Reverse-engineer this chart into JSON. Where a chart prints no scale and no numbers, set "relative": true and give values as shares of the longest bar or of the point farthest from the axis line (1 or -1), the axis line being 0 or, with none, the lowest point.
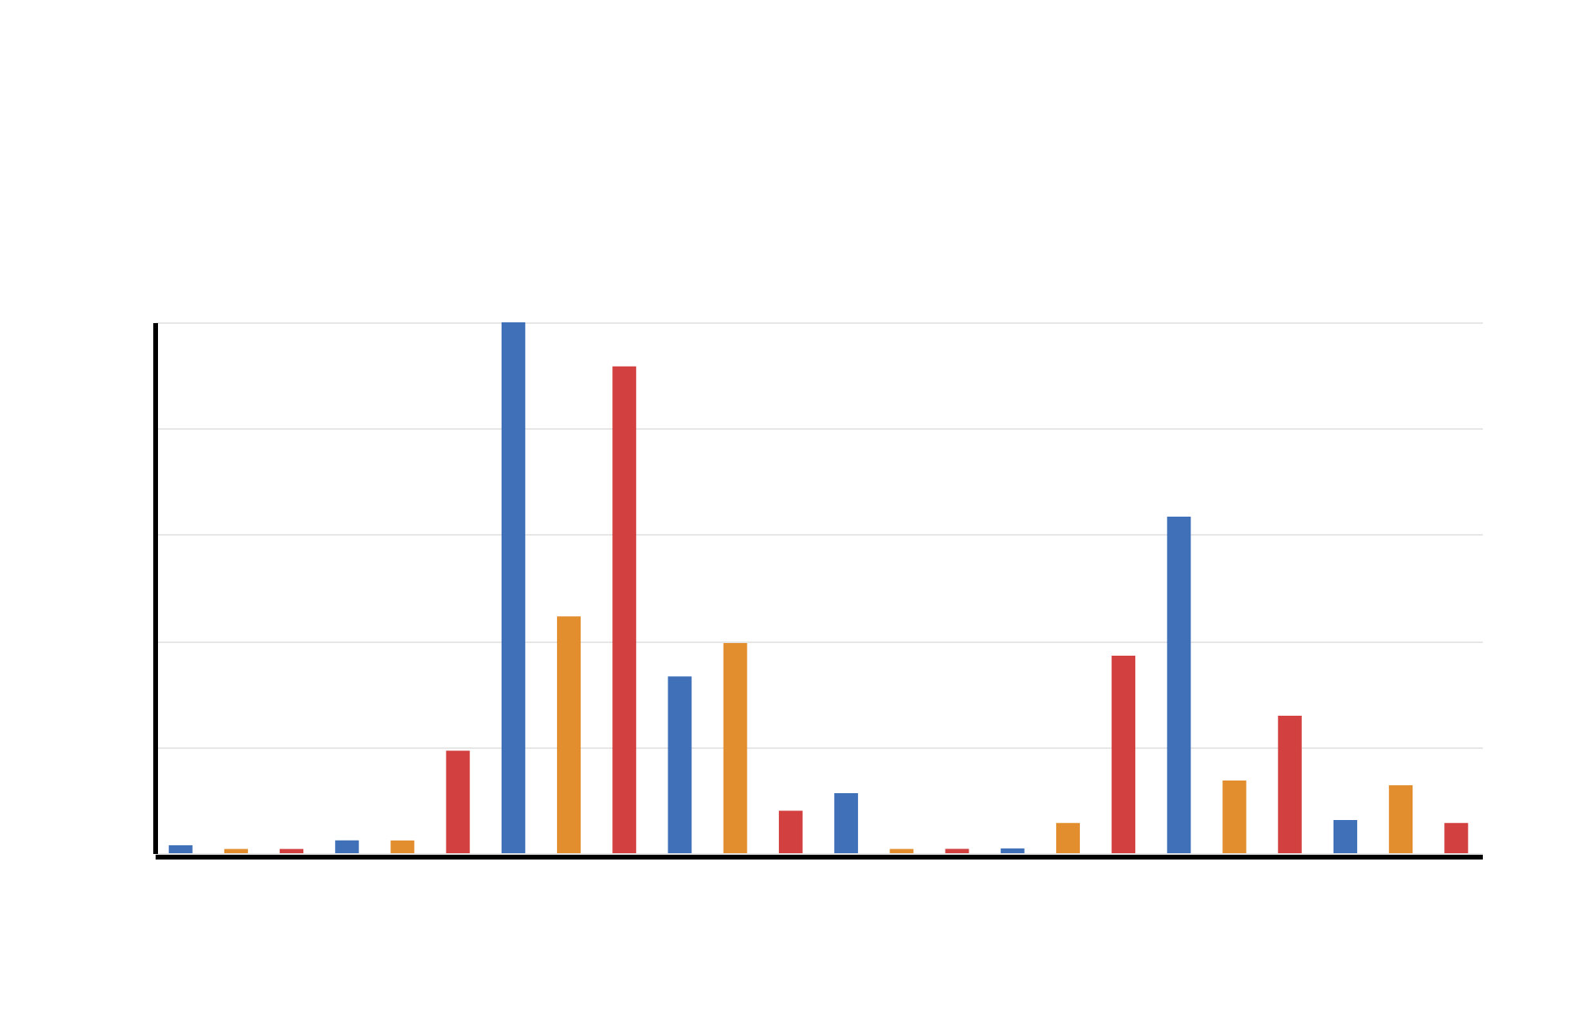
{
  "chart_data": {
    "type": "bar",
    "relative": true,
    "grid": "y",
    "categories": [
      null,
      null,
      null,
      null,
      null,
      null,
      null,
      null,
      null,
      null,
      null,
      null,
      null,
      null,
      null,
      null,
      null,
      null,
      null,
      null,
      null,
      null,
      null,
      null
    ],
    "values": [
      0.015,
      0.008,
      0.008,
      0.024,
      0.024,
      0.193,
      1,
      0.446,
      0.917,
      0.333,
      0.396,
      0.08,
      0.113,
      0.008,
      0.008,
      0.009,
      0.057,
      0.372,
      0.634,
      0.137,
      0.259,
      0.0625,
      0.128,
      0.057
    ],
    "colors": [
      "#3f70b8",
      "#e28e2f",
      "#d24040",
      "#3f70b8",
      "#e28e2f",
      "#d24040",
      "#3f70b8",
      "#e28e2f",
      "#d24040",
      "#3f70b8",
      "#e28e2f",
      "#d24040",
      "#3f70b8",
      "#e28e2f",
      "#d24040",
      "#3f70b8",
      "#e28e2f",
      "#d24040",
      "#3f70b8",
      "#e28e2f",
      "#d24040",
      "#3f70b8",
      "#e28e2f",
      "#d24040"
    ]
  }
}
